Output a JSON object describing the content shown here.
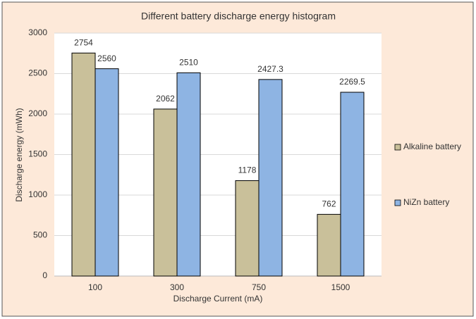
{
  "chart_data": {
    "type": "bar",
    "title": "Different battery discharge energy histogram",
    "x_label": "Discharge Current (mA)",
    "y_label": "Discharge energy (mWh)",
    "categories": [
      "100",
      "300",
      "750",
      "1500"
    ],
    "series": [
      {
        "name": "Alkaline battery",
        "color": "#c9c09a",
        "values": [
          2754,
          2062,
          1178,
          762
        ]
      },
      {
        "name": "NiZn battery",
        "color": "#8eb4e3",
        "values": [
          2560,
          2510,
          2427.3,
          2269.5
        ]
      }
    ],
    "ylim": [
      0,
      3000
    ],
    "yticks": [
      0,
      500,
      1000,
      1500,
      2000,
      2500,
      3000
    ],
    "grid": true,
    "legend": "right"
  }
}
